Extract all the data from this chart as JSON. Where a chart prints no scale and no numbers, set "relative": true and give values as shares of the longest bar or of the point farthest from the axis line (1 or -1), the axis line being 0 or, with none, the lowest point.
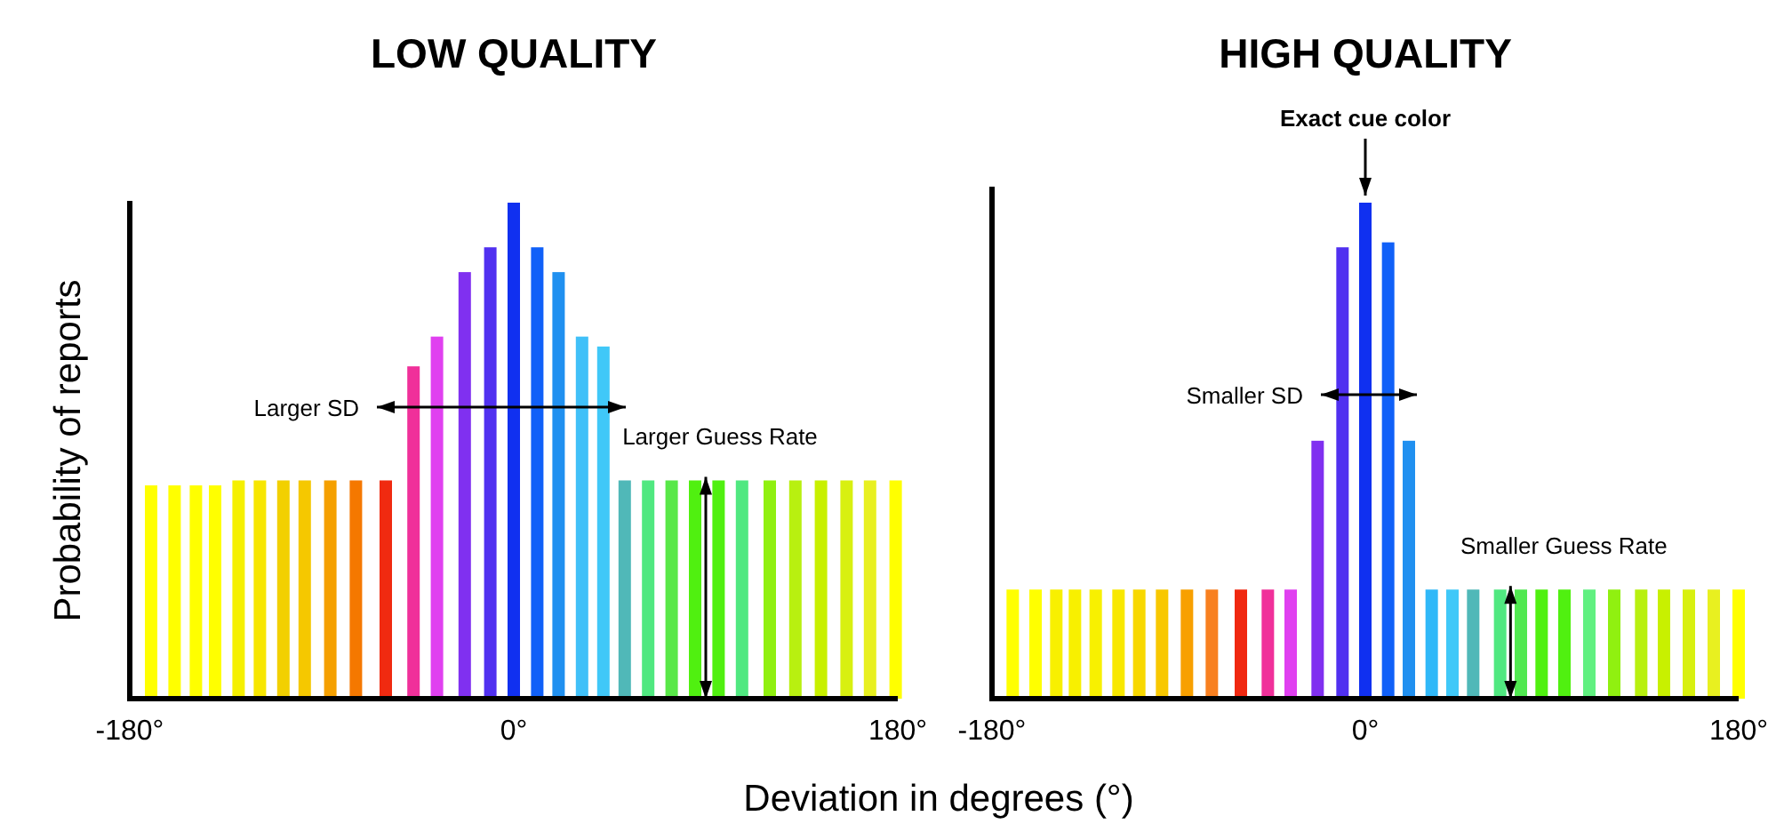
{
  "chart_data": [
    {
      "type": "bar",
      "title": "LOW QUALITY",
      "xlabel": "Deviation in degrees (°)",
      "ylabel": "Probability of reports",
      "relative": true,
      "xlim": [
        -180,
        180
      ],
      "xticks": [
        {
          "value": -180,
          "label": "-180°"
        },
        {
          "value": 0,
          "label": "0°"
        },
        {
          "value": 180,
          "label": "180°"
        }
      ],
      "x": [
        -170,
        -159,
        -149,
        -140,
        -129,
        -119,
        -108,
        -98,
        -86,
        -74,
        -60,
        -47,
        -36,
        -23,
        -11,
        0,
        11,
        21,
        32,
        42,
        52,
        63,
        74,
        85,
        96,
        107,
        120,
        132,
        144,
        156,
        167,
        179
      ],
      "values": [
        0.43,
        0.43,
        0.43,
        0.43,
        0.44,
        0.44,
        0.44,
        0.44,
        0.44,
        0.44,
        0.44,
        0.67,
        0.73,
        0.86,
        0.91,
        1,
        0.91,
        0.86,
        0.73,
        0.71,
        0.44,
        0.44,
        0.44,
        0.44,
        0.44,
        0.44,
        0.44,
        0.44,
        0.44,
        0.44,
        0.44,
        0.44
      ],
      "colors": [
        "#ffff00",
        "#ffff00",
        "#ffff00",
        "#ffff00",
        "#f5f000",
        "#f7e600",
        "#f2d000",
        "#f5c800",
        "#f5a000",
        "#f57800",
        "#f02a10",
        "#f0309a",
        "#e040f0",
        "#8030f0",
        "#5030f0",
        "#1030f0",
        "#1060f8",
        "#2090f0",
        "#40c0f8",
        "#40c8f8",
        "#50b8b8",
        "#50e880",
        "#58e848",
        "#50f010",
        "#50f010",
        "#50e880",
        "#90f010",
        "#b8f010",
        "#c8f000",
        "#d8f010",
        "#e8f020",
        "#ffff00"
      ],
      "annotations": [
        "Larger SD",
        {
          "text": "Larger Guess Rate",
          "x": 90,
          "y": 0.44
        }
      ]
    },
    {
      "type": "bar",
      "title": "HIGH QUALITY",
      "relative": true,
      "xlim": [
        -180,
        180
      ],
      "xticks": [
        {
          "value": -180,
          "label": "-180°"
        },
        {
          "value": 0,
          "label": "0°"
        },
        {
          "value": 180,
          "label": "180°"
        }
      ],
      "x": [
        -170,
        -159,
        -149,
        -140,
        -130,
        -119,
        -109,
        -98,
        -86,
        -74,
        -60,
        -47,
        -36,
        -23,
        -11,
        0,
        11,
        21,
        32,
        42,
        52,
        65,
        75,
        85,
        96,
        108,
        120,
        133,
        144,
        156,
        168,
        180
      ],
      "values": [
        0.22,
        0.22,
        0.22,
        0.22,
        0.22,
        0.22,
        0.22,
        0.22,
        0.22,
        0.22,
        0.22,
        0.22,
        0.22,
        0.52,
        0.91,
        1,
        0.92,
        0.52,
        0.22,
        0.22,
        0.22,
        0.22,
        0.22,
        0.22,
        0.22,
        0.22,
        0.22,
        0.22,
        0.22,
        0.22,
        0.22,
        0.22
      ],
      "colors": [
        "#ffff00",
        "#ffff00",
        "#f8f000",
        "#f8f000",
        "#f8f000",
        "#f8e800",
        "#f8d800",
        "#f8c800",
        "#f8a000",
        "#f88020",
        "#f02810",
        "#f0309a",
        "#e040f0",
        "#8030f0",
        "#5030f0",
        "#1030f0",
        "#1060f8",
        "#2090f0",
        "#30b8f8",
        "#40c8f8",
        "#50b8b8",
        "#50e880",
        "#50e850",
        "#50f010",
        "#50f010",
        "#60f080",
        "#90f010",
        "#b8f010",
        "#c8f000",
        "#d8f010",
        "#e8f020",
        "#ffff00"
      ],
      "annotations": [
        {
          "text": "Exact cue color",
          "x": 0,
          "y": 1
        },
        "Smaller SD",
        {
          "text": "Smaller Guess Rate",
          "x": 70,
          "y": 0.22
        }
      ]
    }
  ]
}
